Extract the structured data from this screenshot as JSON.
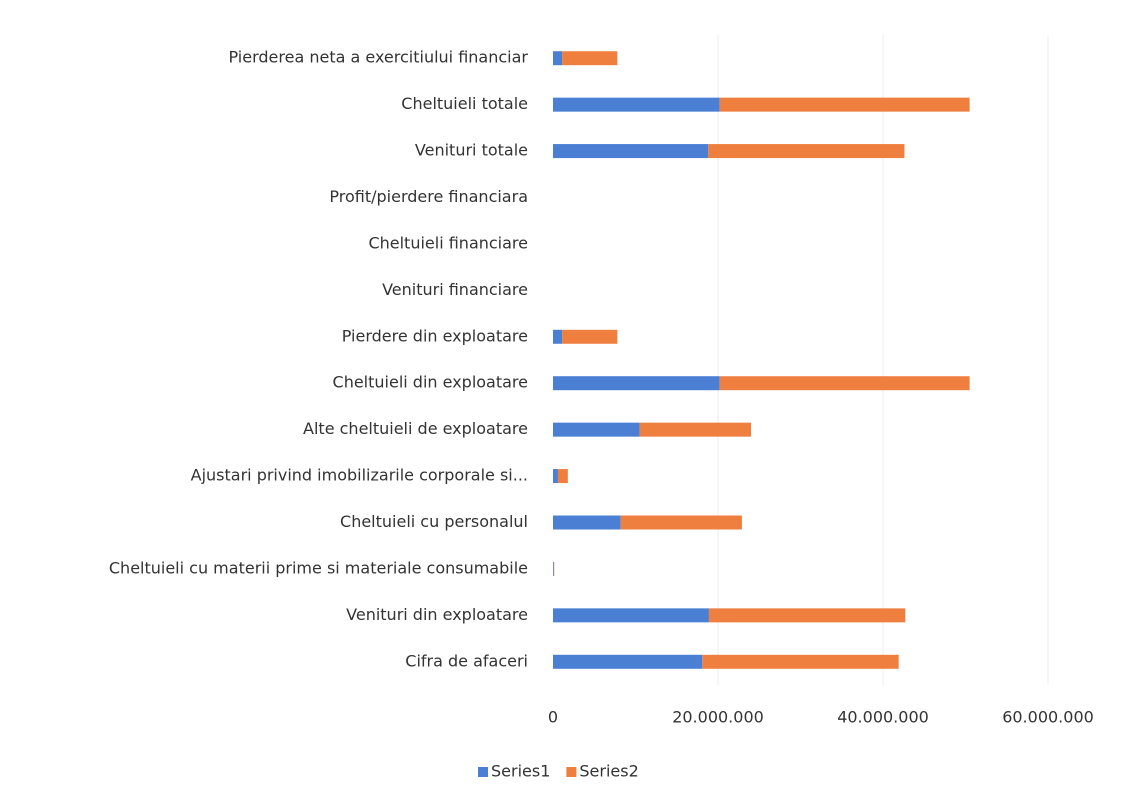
{
  "chart_data": {
    "type": "stacked-bar-horizontal",
    "categories": [
      "Cifra de afaceri",
      "Venituri din exploatare",
      "Cheltuieli cu materii prime si materiale consumabile",
      "Cheltuieli cu personalul",
      "Ajustari privind imobilizarile corporale si...",
      "Alte cheltuieli de exploatare",
      "Cheltuieli din exploatare",
      "Pierdere din exploatare",
      "Venituri financiare",
      "Cheltuieli financiare",
      "Profit/pierdere financiara",
      "Venituri totale",
      "Cheltuieli totale",
      "Pierderea neta a exercitiului financiar"
    ],
    "series": [
      {
        "name": "Series1",
        "color": "#4a7fd4",
        "values": [
          18100000,
          18900000,
          100000,
          8200000,
          600000,
          10500000,
          20200000,
          1100000,
          0,
          0,
          0,
          18800000,
          20200000,
          1100000
        ]
      },
      {
        "name": "Series2",
        "color": "#ef7f3f",
        "values": [
          23800000,
          23800000,
          50000,
          14700000,
          1200000,
          13500000,
          30300000,
          6700000,
          0,
          0,
          0,
          23800000,
          30300000,
          6700000
        ]
      }
    ],
    "xlim": [
      0,
      60000000
    ],
    "xticks": [
      0,
      {
        "value": 20000000,
        "label": "20.000.000"
      },
      {
        "value": 40000000,
        "label": "40.000.000"
      },
      {
        "value": 60000000,
        "label": "60.000.000"
      }
    ],
    "grid": true,
    "legend": "bottom"
  }
}
